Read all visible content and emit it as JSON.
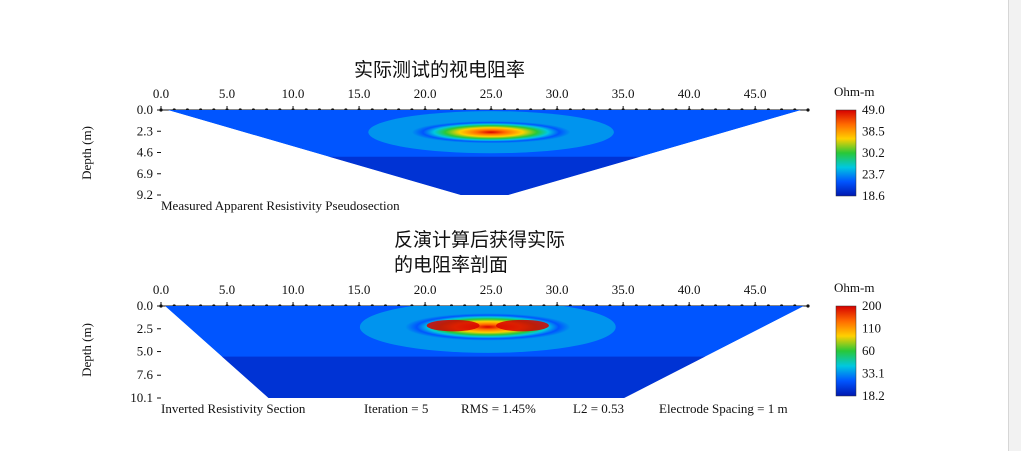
{
  "titles": {
    "top": "实际测试的视电阻率",
    "bottom_line1": "反演计算后获得实际",
    "bottom_line2": "的电阻率剖面"
  },
  "chart_data": [
    {
      "type": "heatmap",
      "title": "Measured Apparent Resistivity Pseudosection",
      "ylabel": "Depth (m)",
      "xlim": [
        0,
        49
      ],
      "ylim": [
        0,
        9.2
      ],
      "x_ticks": [
        "0.0",
        "5.0",
        "10.0",
        "15.0",
        "20.0",
        "25.0",
        "30.0",
        "35.0",
        "40.0",
        "45.0"
      ],
      "y_ticks": [
        "0.0",
        "2.3",
        "4.6",
        "6.9",
        "9.2"
      ],
      "colorbar": {
        "unit": "Ohm-m",
        "labels": [
          "49.0",
          "38.5",
          "30.2",
          "23.7",
          "18.6"
        ],
        "colors": [
          "#d60000",
          "#ff6a00",
          "#ffd000",
          "#28c838",
          "#00c8e0",
          "#0055ff",
          "#0018b0"
        ]
      },
      "anomaly": {
        "x_range": [
          19,
          31
        ],
        "depth_range": [
          1.2,
          3.6
        ],
        "max_value": 49.0
      },
      "background_value": 18.6
    },
    {
      "type": "heatmap",
      "title": "Inverted Resistivity Section",
      "ylabel": "Depth (m)",
      "xlim": [
        0,
        49
      ],
      "ylim": [
        0,
        10.1
      ],
      "x_ticks": [
        "0.0",
        "5.0",
        "10.0",
        "15.0",
        "20.0",
        "25.0",
        "30.0",
        "35.0",
        "40.0",
        "45.0"
      ],
      "y_ticks": [
        "0.0",
        "2.5",
        "5.0",
        "7.6",
        "10.1"
      ],
      "stats": {
        "iteration": "Iteration = 5",
        "rms": "RMS = 1.45%",
        "l2": "L2 = 0.53",
        "spacing": "Electrode Spacing = 1 m"
      },
      "colorbar": {
        "unit": "Ohm-m",
        "labels": [
          "200",
          "110",
          "60",
          "33.1",
          "18.2"
        ],
        "colors": [
          "#d60000",
          "#ff6a00",
          "#ffd000",
          "#28c838",
          "#00c8e0",
          "#0055ff",
          "#0018b0"
        ]
      },
      "anomaly": {
        "x_range": [
          18.5,
          31
        ],
        "depth_range": [
          0.8,
          3.8
        ],
        "max_value": 200
      },
      "background_value": 18.2
    }
  ]
}
